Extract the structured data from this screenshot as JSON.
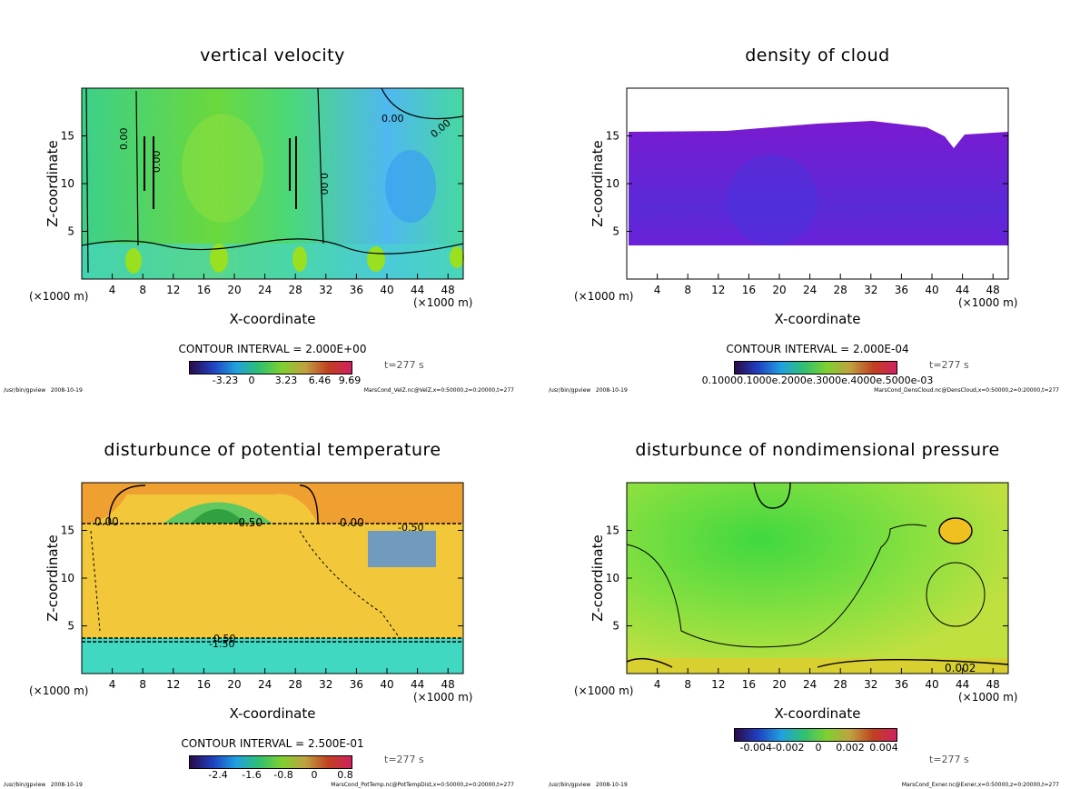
{
  "app": {
    "path": "/usr/bin/gpview",
    "date": "2008-10-19"
  },
  "panels": [
    {
      "title": "vertical velocity",
      "xlabel": "X-coordinate",
      "ylabel": "Z-coordinate",
      "x_unit_left": "(×1000 m)",
      "x_unit_right": "(×1000 m)",
      "contour_interval": "CONTOUR INTERVAL = 2.000E+00",
      "time": "t=277 s",
      "source": "MarsCond_VelZ.nc@VelZ,x=0:50000,z=0:20000,t=277",
      "colorbar_ticks": [
        "-3.23",
        "0",
        "3.23",
        "6.46",
        "9.69"
      ],
      "contour_labels": [
        "0.00",
        "0.00",
        "0.00",
        "0.00",
        "0.00"
      ]
    },
    {
      "title": "density of cloud",
      "xlabel": "X-coordinate",
      "ylabel": "Z-coordinate",
      "x_unit_left": "(×1000 m)",
      "x_unit_right": "(×1000 m)",
      "contour_interval": "CONTOUR INTERVAL = 2.000E-04",
      "time": "t=277 s",
      "source": "MarsCond_DensCloud.nc@DensCloud,x=0:50000,z=0:20000,t=277",
      "colorbar_ticks": [
        "0.10000.1000e.2000e.3000e.4000e.5000e-03"
      ]
    },
    {
      "title": "disturbunce of potential temperature",
      "xlabel": "X-coordinate",
      "ylabel": "Z-coordinate",
      "x_unit_left": "(×1000 m)",
      "x_unit_right": "(×1000 m)",
      "contour_interval": "CONTOUR INTERVAL = 2.500E-01",
      "time": "t=277 s",
      "source": "MarsCond_PotTemp.nc@PotTempDist,x=0:50000,z=0:20000,t=277",
      "colorbar_ticks": [
        "-2.4",
        "-1.6",
        "-0.8",
        "0",
        "0.8"
      ],
      "contour_labels": [
        "0.00",
        "-0.50",
        "0.00",
        "-0.50",
        "0.50",
        "-1.50"
      ]
    },
    {
      "title": "disturbunce of nondimensional pressure",
      "xlabel": "X-coordinate",
      "ylabel": "Z-coordinate",
      "x_unit_left": "(×1000 m)",
      "x_unit_right": "(×1000 m)",
      "contour_interval": "",
      "time": "t=277 s",
      "source": "MarsCond_Exner.nc@Exner,x=0:50000,z=0:20000,t=277",
      "colorbar_ticks": [
        "-0.004-0.002",
        "0",
        "0.002",
        "0.004"
      ],
      "contour_labels": [
        "0.002"
      ]
    }
  ],
  "chart_data": [
    {
      "type": "heatmap",
      "title": "vertical velocity",
      "xlabel": "X-coordinate",
      "ylabel": "Z-coordinate",
      "x_ticks": [
        4,
        8,
        12,
        16,
        20,
        24,
        28,
        32,
        36,
        40,
        44,
        48
      ],
      "y_ticks": [
        5,
        10,
        15
      ],
      "xlim": [
        0,
        50
      ],
      "ylim": [
        0,
        20
      ],
      "colorbar": [
        -3.23,
        0,
        3.23,
        6.46,
        9.69
      ]
    },
    {
      "type": "heatmap",
      "title": "density of cloud",
      "xlabel": "X-coordinate",
      "ylabel": "Z-coordinate",
      "x_ticks": [
        4,
        8,
        12,
        16,
        20,
        24,
        28,
        32,
        36,
        40,
        44,
        48
      ],
      "y_ticks": [
        5,
        10,
        15
      ],
      "xlim": [
        0,
        50
      ],
      "ylim": [
        0,
        20
      ]
    },
    {
      "type": "heatmap",
      "title": "disturbunce of potential temperature",
      "xlabel": "X-coordinate",
      "ylabel": "Z-coordinate",
      "x_ticks": [
        4,
        8,
        12,
        16,
        20,
        24,
        28,
        32,
        36,
        40,
        44,
        48
      ],
      "y_ticks": [
        5,
        10,
        15
      ],
      "xlim": [
        0,
        50
      ],
      "ylim": [
        0,
        20
      ],
      "colorbar": [
        -2.4,
        -1.6,
        -0.8,
        0,
        0.8
      ]
    },
    {
      "type": "heatmap",
      "title": "disturbunce of nondimensional pressure",
      "xlabel": "X-coordinate",
      "ylabel": "Z-coordinate",
      "x_ticks": [
        4,
        8,
        12,
        16,
        20,
        24,
        28,
        32,
        36,
        40,
        44,
        48
      ],
      "y_ticks": [
        5,
        10,
        15
      ],
      "xlim": [
        0,
        50
      ],
      "ylim": [
        0,
        20
      ],
      "colorbar": [
        -0.004,
        -0.002,
        0,
        0.002,
        0.004
      ]
    }
  ]
}
